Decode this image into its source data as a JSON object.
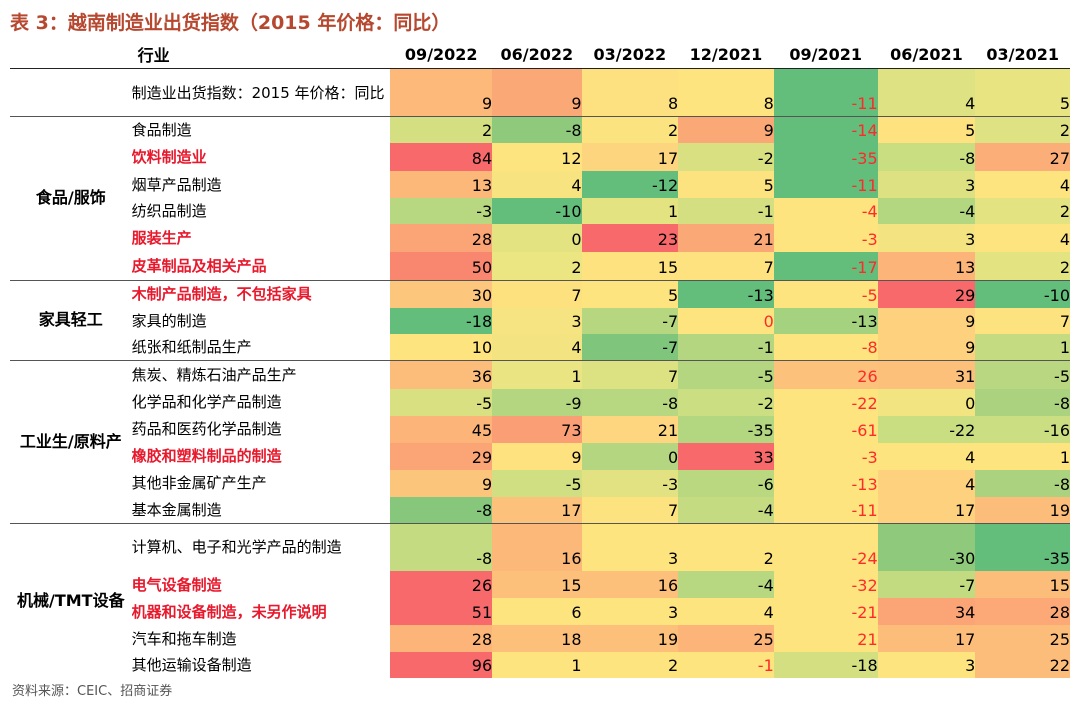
{
  "title": {
    "prefix": "表 3：",
    "text": "越南制造业出货指数（2015 年价格：同比）"
  },
  "columns": [
    "行业",
    "09/2022",
    "06/2022",
    "03/2022",
    "12/2021",
    "09/2021",
    "06/2021",
    "03/2021"
  ],
  "colors": {
    "green_dark": "#63be7b",
    "green": "#8fca7c",
    "green_light": "#c9dd81",
    "yellow": "#fbe47f",
    "orange_light": "#fcc67c",
    "orange": "#fba877",
    "red": "#f8696b",
    "red_light": "#f98b72"
  },
  "rows": [
    {
      "group": "",
      "name": "制造业出货指数：2015 年价格：同比",
      "highlight": false,
      "values": [
        "9",
        "9",
        "8",
        "8",
        "-11",
        "4",
        "5"
      ],
      "colors": [
        "#fcb97a",
        "#fba877",
        "#fde07f",
        "#fde47f",
        "#63be7b",
        "#dfe282",
        "#e8e482"
      ],
      "red_text": [
        false,
        false,
        false,
        false,
        true,
        false,
        false
      ]
    },
    {
      "group": "食品/服饰",
      "name": "食品制造",
      "highlight": false,
      "values": [
        "2",
        "-8",
        "2",
        "9",
        "-14",
        "5",
        "2"
      ],
      "colors": [
        "#d3df81",
        "#8fca7c",
        "#fbe47f",
        "#fba877",
        "#63be7b",
        "#fde27f",
        "#dfe282"
      ],
      "red_text": [
        false,
        false,
        false,
        false,
        true,
        false,
        false
      ]
    },
    {
      "name": "饮料制造业",
      "highlight": true,
      "values": [
        "84",
        "12",
        "17",
        "-2",
        "-35",
        "-8",
        "27"
      ],
      "colors": [
        "#f8696b",
        "#fde47f",
        "#fdd57f",
        "#d9e082",
        "#63be7b",
        "#c9dd81",
        "#fcae78"
      ],
      "red_text": [
        false,
        false,
        false,
        false,
        true,
        false,
        false
      ]
    },
    {
      "name": "烟草产品制造",
      "highlight": false,
      "values": [
        "13",
        "4",
        "-12",
        "5",
        "-11",
        "3",
        "4"
      ],
      "colors": [
        "#fcb879",
        "#f7e481",
        "#63be7b",
        "#fde37f",
        "#63be7b",
        "#dde182",
        "#fde47f"
      ],
      "red_text": [
        false,
        false,
        false,
        false,
        true,
        false,
        false
      ]
    },
    {
      "name": "纺织品制造",
      "highlight": false,
      "values": [
        "-3",
        "-10",
        "1",
        "-1",
        "-4",
        "-4",
        "2"
      ],
      "colors": [
        "#b7d780",
        "#63be7b",
        "#e3e382",
        "#d3df81",
        "#fde47f",
        "#b3d680",
        "#e3e382"
      ],
      "red_text": [
        false,
        false,
        false,
        false,
        true,
        false,
        false
      ]
    },
    {
      "name": "服装生产",
      "highlight": true,
      "values": [
        "28",
        "0",
        "23",
        "21",
        "-3",
        "3",
        "4"
      ],
      "colors": [
        "#fba476",
        "#e3e382",
        "#f8696b",
        "#fba877",
        "#fde47f",
        "#f3e481",
        "#fde47f"
      ],
      "red_text": [
        false,
        false,
        false,
        false,
        true,
        false,
        false
      ]
    },
    {
      "name": "皮革制品及相关产品",
      "highlight": true,
      "values": [
        "50",
        "2",
        "15",
        "7",
        "-17",
        "13",
        "2"
      ],
      "colors": [
        "#f98770",
        "#ebe582",
        "#fde27f",
        "#fde27f",
        "#63be7b",
        "#fcb479",
        "#e3e382"
      ],
      "red_text": [
        false,
        false,
        false,
        false,
        true,
        false,
        false
      ]
    },
    {
      "group": "家具轻工",
      "name": "木制产品制造，不包括家具",
      "highlight": true,
      "values": [
        "30",
        "7",
        "5",
        "-13",
        "-5",
        "29",
        "-10"
      ],
      "colors": [
        "#fcc67c",
        "#fee17f",
        "#fde47f",
        "#63be7b",
        "#fde47f",
        "#f8696b",
        "#63be7b"
      ],
      "red_text": [
        false,
        false,
        false,
        false,
        true,
        false,
        false
      ]
    },
    {
      "name": "家具的制造",
      "highlight": false,
      "values": [
        "-18",
        "3",
        "-7",
        "0",
        "-13",
        "9",
        "7"
      ],
      "colors": [
        "#63be7b",
        "#f5e481",
        "#b6d780",
        "#fde47f",
        "#a5d27f",
        "#fdd17e",
        "#fde37f"
      ],
      "red_text": [
        false,
        false,
        false,
        true,
        false,
        false,
        false
      ]
    },
    {
      "name": "纸张和纸制品生产",
      "highlight": false,
      "values": [
        "10",
        "4",
        "-7",
        "-1",
        "-8",
        "9",
        "1"
      ],
      "colors": [
        "#fde47f",
        "#f3e481",
        "#80c57c",
        "#b5d680",
        "#fde47f",
        "#fdd17e",
        "#c5db81"
      ],
      "red_text": [
        false,
        false,
        false,
        false,
        true,
        false,
        false
      ]
    },
    {
      "group": "工业生/原料产",
      "name": "焦炭、精炼石油产品生产",
      "highlight": false,
      "values": [
        "36",
        "1",
        "7",
        "-5",
        "26",
        "31",
        "-5"
      ],
      "colors": [
        "#fcbd7a",
        "#eae582",
        "#dce181",
        "#b5d680",
        "#fcc17b",
        "#fcc07b",
        "#b8d780"
      ],
      "red_text": [
        false,
        false,
        false,
        false,
        true,
        false,
        false
      ]
    },
    {
      "name": "化学品和化学产品制造",
      "highlight": false,
      "values": [
        "-5",
        "-9",
        "-8",
        "-2",
        "-22",
        "0",
        "-8"
      ],
      "colors": [
        "#d9e082",
        "#b5d680",
        "#b7d780",
        "#cbde81",
        "#fde47f",
        "#f1e481",
        "#abd37f"
      ],
      "red_text": [
        false,
        false,
        false,
        false,
        true,
        false,
        false
      ]
    },
    {
      "name": "药品和医药化学品制造",
      "highlight": false,
      "values": [
        "45",
        "73",
        "21",
        "-35",
        "-61",
        "-22",
        "-16"
      ],
      "colors": [
        "#fcb479",
        "#fa9e75",
        "#fdd67f",
        "#b3d680",
        "#fde47f",
        "#c9dd81",
        "#cbde81"
      ],
      "red_text": [
        false,
        false,
        false,
        false,
        true,
        false,
        false
      ]
    },
    {
      "name": "橡胶和塑料制品的制造",
      "highlight": true,
      "values": [
        "29",
        "9",
        "0",
        "33",
        "-3",
        "4",
        "1"
      ],
      "colors": [
        "#fba476",
        "#fde27f",
        "#b5d680",
        "#f8696b",
        "#fde47f",
        "#fde47f",
        "#fde47f"
      ],
      "red_text": [
        false,
        false,
        false,
        false,
        true,
        false,
        false
      ]
    },
    {
      "name": "其他非金属矿产生产",
      "highlight": false,
      "values": [
        "9",
        "-5",
        "-3",
        "-6",
        "-13",
        "4",
        "-8"
      ],
      "colors": [
        "#fcc57c",
        "#cfdf81",
        "#e2e282",
        "#bad880",
        "#fde47f",
        "#fdd17e",
        "#abd37f"
      ],
      "red_text": [
        false,
        false,
        false,
        false,
        true,
        false,
        false
      ]
    },
    {
      "name": "基本金属制造",
      "highlight": false,
      "values": [
        "-8",
        "17",
        "7",
        "-4",
        "-11",
        "17",
        "19"
      ],
      "colors": [
        "#86c77c",
        "#fcc17b",
        "#fde37f",
        "#c5db81",
        "#fde47f",
        "#fdd17e",
        "#fcbd7a"
      ],
      "red_text": [
        false,
        false,
        false,
        false,
        true,
        false,
        false
      ]
    },
    {
      "group": "机械/TMT设备",
      "name": "计算机、电子和光学产品的制造",
      "highlight": false,
      "values": [
        "-8",
        "16",
        "3",
        "2",
        "-24",
        "-30",
        "-35"
      ],
      "colors": [
        "#c5db81",
        "#fcb879",
        "#fde47f",
        "#fde47f",
        "#fde47f",
        "#8fca7c",
        "#63be7b"
      ],
      "red_text": [
        false,
        false,
        false,
        false,
        true,
        false,
        false
      ]
    },
    {
      "name": "电气设备制造",
      "highlight": true,
      "values": [
        "26",
        "15",
        "16",
        "-4",
        "-32",
        "-7",
        "15"
      ],
      "colors": [
        "#f8696b",
        "#fcc07b",
        "#fcc07b",
        "#b7d780",
        "#fde47f",
        "#c2da80",
        "#fcbd7a"
      ],
      "red_text": [
        false,
        false,
        false,
        false,
        true,
        false,
        false
      ]
    },
    {
      "name": "机器和设备制造，未另作说明",
      "highlight": true,
      "values": [
        "51",
        "6",
        "3",
        "4",
        "-21",
        "34",
        "28"
      ],
      "colors": [
        "#f8696b",
        "#fde47f",
        "#fde47f",
        "#fde47f",
        "#fde47f",
        "#fba476",
        "#fca977"
      ],
      "red_text": [
        false,
        false,
        false,
        false,
        true,
        false,
        false
      ]
    },
    {
      "name": "汽车和拖车制造",
      "highlight": false,
      "values": [
        "28",
        "18",
        "19",
        "25",
        "21",
        "17",
        "25"
      ],
      "colors": [
        "#fcb479",
        "#fcc07b",
        "#fcc07b",
        "#fcb479",
        "#fde47f",
        "#fcbd7a",
        "#fcbd7a"
      ],
      "red_text": [
        false,
        false,
        false,
        false,
        true,
        false,
        false
      ]
    },
    {
      "name": "其他运输设备制造",
      "highlight": false,
      "values": [
        "96",
        "1",
        "2",
        "-1",
        "-18",
        "3",
        "22"
      ],
      "colors": [
        "#f8696b",
        "#fde47f",
        "#fde47f",
        "#fde47f",
        "#d3df81",
        "#fde47f",
        "#fcbd7a"
      ],
      "red_text": [
        false,
        false,
        false,
        true,
        false,
        false,
        false
      ]
    }
  ],
  "footnote": "资料来源：CEIC、招商证券"
}
